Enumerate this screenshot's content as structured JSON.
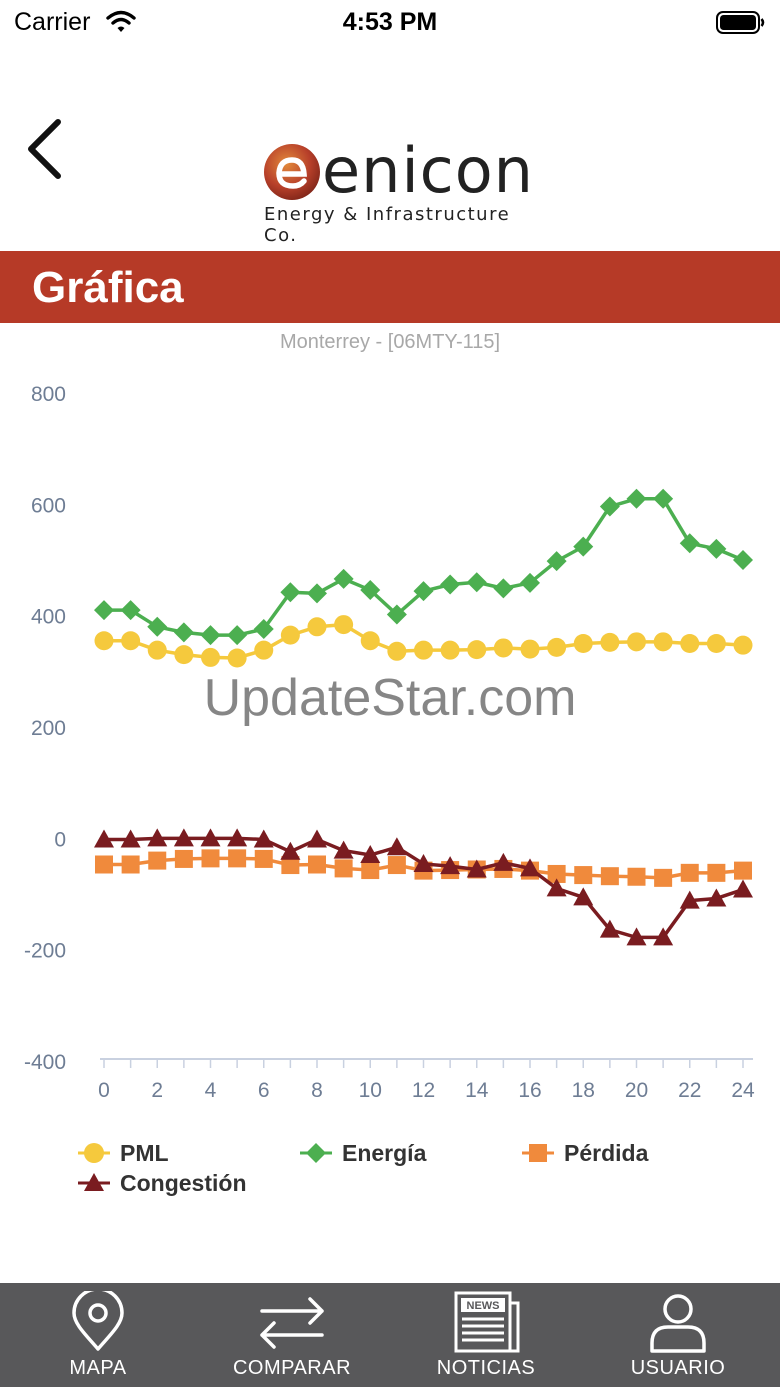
{
  "status_bar": {
    "carrier": "Carrier",
    "time": "4:53 PM"
  },
  "logo": {
    "name": "enicon",
    "tagline": "Energy & Infrastructure Co."
  },
  "header": {
    "title": "Gráfica"
  },
  "watermark": "UpdateStar.com",
  "chart_data": {
    "type": "line",
    "title": "Monterrey - [06MTY-115]",
    "xlabel": "",
    "ylabel": "",
    "xlim": [
      0,
      24
    ],
    "ylim": [
      -400,
      800
    ],
    "x_ticks": [
      0,
      2,
      4,
      6,
      8,
      10,
      12,
      14,
      16,
      18,
      20,
      22,
      24
    ],
    "y_ticks": [
      -400,
      -200,
      0,
      200,
      400,
      600,
      800
    ],
    "x": [
      0,
      1,
      2,
      3,
      4,
      5,
      6,
      7,
      8,
      9,
      10,
      11,
      12,
      13,
      14,
      15,
      16,
      17,
      18,
      19,
      20,
      21,
      22,
      23,
      24
    ],
    "grid": false,
    "legend": "bottom",
    "series": [
      {
        "name": "PML",
        "marker": "circle",
        "color": "#f5c93d",
        "values": [
          355,
          355,
          338,
          330,
          325,
          324,
          338,
          365,
          380,
          384,
          355,
          336,
          338,
          338,
          339,
          342,
          340,
          343,
          350,
          352,
          353,
          353,
          350,
          350,
          347
        ]
      },
      {
        "name": "Energía",
        "marker": "diamond",
        "color": "#4caf50",
        "values": [
          410,
          410,
          380,
          370,
          365,
          365,
          376,
          442,
          440,
          466,
          446,
          402,
          444,
          456,
          460,
          449,
          459,
          498,
          524,
          596,
          610,
          610,
          530,
          520,
          500
        ]
      },
      {
        "name": "Pérdida",
        "marker": "square",
        "color": "#f08a3c",
        "values": [
          -47,
          -47,
          -40,
          -37,
          -36,
          -36,
          -37,
          -48,
          -47,
          -54,
          -57,
          -48,
          -58,
          -57,
          -56,
          -55,
          -58,
          -64,
          -66,
          -68,
          -69,
          -71,
          -62,
          -62,
          -58
        ]
      },
      {
        "name": "Congestión",
        "marker": "triangle",
        "color": "#7a1c20",
        "values": [
          -2,
          -2,
          0,
          0,
          0,
          0,
          -2,
          -24,
          -2,
          -22,
          -30,
          -16,
          -46,
          -50,
          -56,
          -44,
          -54,
          -90,
          -106,
          -164,
          -178,
          -178,
          -112,
          -108,
          -92
        ]
      }
    ]
  },
  "tabs": [
    {
      "id": "mapa",
      "label": "MAPA",
      "icon": "map-pin-icon"
    },
    {
      "id": "comparar",
      "label": "COMPARAR",
      "icon": "swap-arrows-icon"
    },
    {
      "id": "noticias",
      "label": "NOTICIAS",
      "icon": "newspaper-icon"
    },
    {
      "id": "usuario",
      "label": "USUARIO",
      "icon": "user-icon"
    }
  ]
}
